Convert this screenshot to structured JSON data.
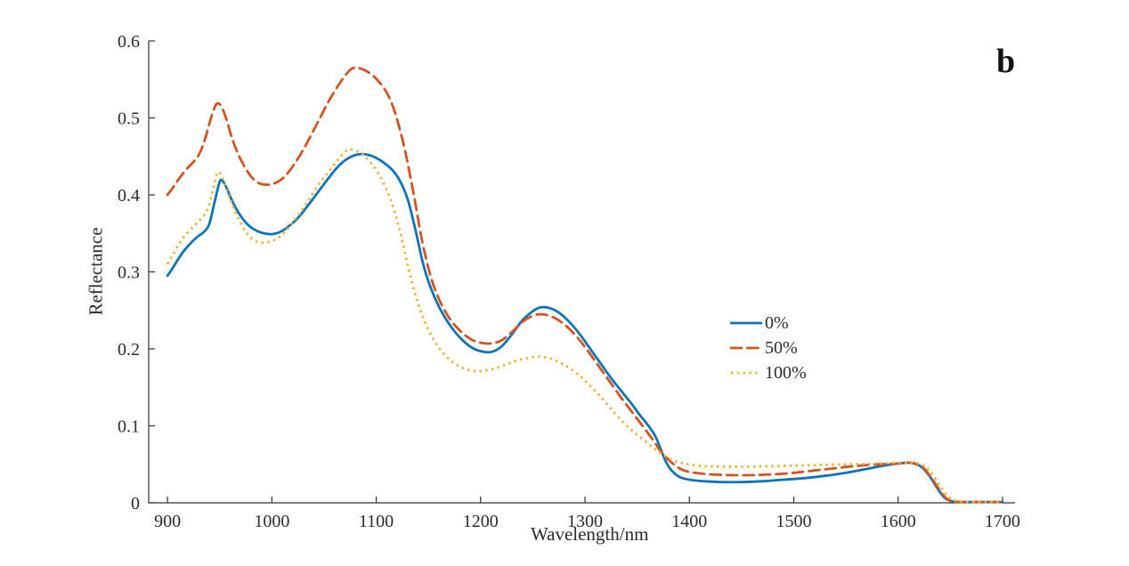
{
  "figure": {
    "panel_label": "b",
    "background_color": "#ffffff"
  },
  "chart_data": {
    "type": "line",
    "title": "",
    "xlabel": "Wavelength/nm",
    "ylabel": "Reflectance",
    "xlim": [
      882,
      1712
    ],
    "ylim": [
      0,
      0.6
    ],
    "x_ticks": [
      900,
      1000,
      1100,
      1200,
      1300,
      1400,
      1500,
      1600,
      1700
    ],
    "y_ticks": [
      0,
      0.1,
      0.2,
      0.3,
      0.4,
      0.5,
      0.6
    ],
    "y_tick_labels": [
      "0",
      "0.1",
      "0.2",
      "0.3",
      "0.4",
      "0.5",
      "0.6"
    ],
    "grid": false,
    "legend_position": "right-center",
    "axis_color": "#333333",
    "text_color": "#2b2b2b",
    "series": [
      {
        "name": "0%",
        "color": "#0e74b8",
        "style": "solid",
        "points": [
          [
            900,
            0.295
          ],
          [
            905,
            0.305
          ],
          [
            910,
            0.316
          ],
          [
            915,
            0.326
          ],
          [
            920,
            0.334
          ],
          [
            925,
            0.341
          ],
          [
            930,
            0.347
          ],
          [
            935,
            0.352
          ],
          [
            940,
            0.362
          ],
          [
            945,
            0.39
          ],
          [
            950,
            0.417
          ],
          [
            953,
            0.418
          ],
          [
            957,
            0.408
          ],
          [
            962,
            0.392
          ],
          [
            968,
            0.377
          ],
          [
            975,
            0.364
          ],
          [
            982,
            0.356
          ],
          [
            990,
            0.351
          ],
          [
            1000,
            0.349
          ],
          [
            1008,
            0.352
          ],
          [
            1015,
            0.358
          ],
          [
            1025,
            0.37
          ],
          [
            1035,
            0.387
          ],
          [
            1045,
            0.405
          ],
          [
            1055,
            0.423
          ],
          [
            1065,
            0.439
          ],
          [
            1075,
            0.449
          ],
          [
            1085,
            0.453
          ],
          [
            1095,
            0.451
          ],
          [
            1105,
            0.444
          ],
          [
            1115,
            0.433
          ],
          [
            1122,
            0.42
          ],
          [
            1130,
            0.395
          ],
          [
            1138,
            0.352
          ],
          [
            1145,
            0.31
          ],
          [
            1152,
            0.28
          ],
          [
            1160,
            0.255
          ],
          [
            1170,
            0.232
          ],
          [
            1180,
            0.215
          ],
          [
            1190,
            0.203
          ],
          [
            1200,
            0.197
          ],
          [
            1210,
            0.196
          ],
          [
            1220,
            0.203
          ],
          [
            1230,
            0.219
          ],
          [
            1240,
            0.237
          ],
          [
            1250,
            0.249
          ],
          [
            1258,
            0.254
          ],
          [
            1266,
            0.253
          ],
          [
            1275,
            0.247
          ],
          [
            1285,
            0.235
          ],
          [
            1295,
            0.219
          ],
          [
            1305,
            0.2
          ],
          [
            1315,
            0.181
          ],
          [
            1325,
            0.162
          ],
          [
            1335,
            0.145
          ],
          [
            1345,
            0.128
          ],
          [
            1352,
            0.115
          ],
          [
            1358,
            0.105
          ],
          [
            1363,
            0.096
          ],
          [
            1368,
            0.085
          ],
          [
            1373,
            0.068
          ],
          [
            1378,
            0.052
          ],
          [
            1383,
            0.042
          ],
          [
            1390,
            0.034
          ],
          [
            1400,
            0.03
          ],
          [
            1415,
            0.028
          ],
          [
            1430,
            0.027
          ],
          [
            1450,
            0.027
          ],
          [
            1470,
            0.028
          ],
          [
            1490,
            0.03
          ],
          [
            1510,
            0.032
          ],
          [
            1530,
            0.035
          ],
          [
            1550,
            0.039
          ],
          [
            1570,
            0.044
          ],
          [
            1585,
            0.048
          ],
          [
            1600,
            0.051
          ],
          [
            1612,
            0.052
          ],
          [
            1622,
            0.047
          ],
          [
            1630,
            0.035
          ],
          [
            1638,
            0.018
          ],
          [
            1645,
            0.006
          ],
          [
            1652,
            0.002
          ],
          [
            1660,
            0.001
          ],
          [
            1680,
            0.001
          ],
          [
            1700,
            0.001
          ]
        ]
      },
      {
        "name": "50%",
        "color": "#d2541f",
        "style": "dashed",
        "points": [
          [
            900,
            0.4
          ],
          [
            905,
            0.409
          ],
          [
            910,
            0.419
          ],
          [
            915,
            0.428
          ],
          [
            920,
            0.436
          ],
          [
            925,
            0.443
          ],
          [
            930,
            0.452
          ],
          [
            935,
            0.468
          ],
          [
            940,
            0.492
          ],
          [
            945,
            0.513
          ],
          [
            948,
            0.519
          ],
          [
            952,
            0.514
          ],
          [
            957,
            0.496
          ],
          [
            962,
            0.473
          ],
          [
            968,
            0.452
          ],
          [
            975,
            0.434
          ],
          [
            982,
            0.421
          ],
          [
            990,
            0.414
          ],
          [
            1000,
            0.414
          ],
          [
            1008,
            0.419
          ],
          [
            1015,
            0.428
          ],
          [
            1025,
            0.447
          ],
          [
            1035,
            0.471
          ],
          [
            1045,
            0.497
          ],
          [
            1055,
            0.523
          ],
          [
            1065,
            0.545
          ],
          [
            1072,
            0.558
          ],
          [
            1078,
            0.565
          ],
          [
            1085,
            0.564
          ],
          [
            1095,
            0.557
          ],
          [
            1105,
            0.543
          ],
          [
            1113,
            0.525
          ],
          [
            1120,
            0.498
          ],
          [
            1128,
            0.455
          ],
          [
            1136,
            0.4
          ],
          [
            1144,
            0.34
          ],
          [
            1152,
            0.295
          ],
          [
            1160,
            0.265
          ],
          [
            1170,
            0.24
          ],
          [
            1180,
            0.224
          ],
          [
            1190,
            0.213
          ],
          [
            1200,
            0.208
          ],
          [
            1210,
            0.207
          ],
          [
            1220,
            0.211
          ],
          [
            1230,
            0.222
          ],
          [
            1240,
            0.235
          ],
          [
            1250,
            0.243
          ],
          [
            1258,
            0.245
          ],
          [
            1266,
            0.243
          ],
          [
            1275,
            0.237
          ],
          [
            1285,
            0.226
          ],
          [
            1295,
            0.211
          ],
          [
            1305,
            0.193
          ],
          [
            1315,
            0.174
          ],
          [
            1325,
            0.155
          ],
          [
            1335,
            0.136
          ],
          [
            1345,
            0.118
          ],
          [
            1355,
            0.1
          ],
          [
            1365,
            0.082
          ],
          [
            1372,
            0.068
          ],
          [
            1380,
            0.056
          ],
          [
            1388,
            0.047
          ],
          [
            1395,
            0.042
          ],
          [
            1405,
            0.039
          ],
          [
            1420,
            0.037
          ],
          [
            1440,
            0.036
          ],
          [
            1460,
            0.036
          ],
          [
            1480,
            0.037
          ],
          [
            1500,
            0.039
          ],
          [
            1520,
            0.042
          ],
          [
            1540,
            0.045
          ],
          [
            1560,
            0.048
          ],
          [
            1580,
            0.05
          ],
          [
            1600,
            0.051
          ],
          [
            1612,
            0.052
          ],
          [
            1622,
            0.048
          ],
          [
            1630,
            0.036
          ],
          [
            1638,
            0.02
          ],
          [
            1645,
            0.007
          ],
          [
            1652,
            0.002
          ],
          [
            1660,
            0.001
          ],
          [
            1680,
            0.001
          ],
          [
            1700,
            0.001
          ]
        ]
      },
      {
        "name": "100%",
        "color": "#e9b231",
        "style": "dotted",
        "points": [
          [
            900,
            0.31
          ],
          [
            905,
            0.322
          ],
          [
            910,
            0.334
          ],
          [
            915,
            0.344
          ],
          [
            920,
            0.352
          ],
          [
            925,
            0.359
          ],
          [
            930,
            0.366
          ],
          [
            935,
            0.373
          ],
          [
            940,
            0.388
          ],
          [
            945,
            0.415
          ],
          [
            948,
            0.429
          ],
          [
            951,
            0.427
          ],
          [
            955,
            0.413
          ],
          [
            960,
            0.395
          ],
          [
            967,
            0.372
          ],
          [
            975,
            0.352
          ],
          [
            982,
            0.342
          ],
          [
            990,
            0.338
          ],
          [
            1000,
            0.34
          ],
          [
            1008,
            0.346
          ],
          [
            1015,
            0.356
          ],
          [
            1025,
            0.373
          ],
          [
            1035,
            0.393
          ],
          [
            1045,
            0.414
          ],
          [
            1055,
            0.431
          ],
          [
            1063,
            0.445
          ],
          [
            1070,
            0.456
          ],
          [
            1076,
            0.459
          ],
          [
            1083,
            0.456
          ],
          [
            1090,
            0.449
          ],
          [
            1098,
            0.436
          ],
          [
            1106,
            0.418
          ],
          [
            1114,
            0.393
          ],
          [
            1122,
            0.357
          ],
          [
            1130,
            0.31
          ],
          [
            1138,
            0.268
          ],
          [
            1146,
            0.237
          ],
          [
            1155,
            0.212
          ],
          [
            1165,
            0.193
          ],
          [
            1175,
            0.181
          ],
          [
            1185,
            0.174
          ],
          [
            1195,
            0.171
          ],
          [
            1205,
            0.172
          ],
          [
            1215,
            0.175
          ],
          [
            1225,
            0.18
          ],
          [
            1235,
            0.185
          ],
          [
            1245,
            0.188
          ],
          [
            1255,
            0.19
          ],
          [
            1265,
            0.188
          ],
          [
            1275,
            0.183
          ],
          [
            1285,
            0.175
          ],
          [
            1295,
            0.165
          ],
          [
            1305,
            0.152
          ],
          [
            1315,
            0.138
          ],
          [
            1325,
            0.122
          ],
          [
            1335,
            0.107
          ],
          [
            1345,
            0.094
          ],
          [
            1355,
            0.083
          ],
          [
            1365,
            0.072
          ],
          [
            1375,
            0.062
          ],
          [
            1385,
            0.055
          ],
          [
            1395,
            0.051
          ],
          [
            1410,
            0.048
          ],
          [
            1430,
            0.047
          ],
          [
            1460,
            0.047
          ],
          [
            1490,
            0.048
          ],
          [
            1520,
            0.049
          ],
          [
            1550,
            0.05
          ],
          [
            1580,
            0.051
          ],
          [
            1600,
            0.052
          ],
          [
            1615,
            0.052
          ],
          [
            1625,
            0.048
          ],
          [
            1633,
            0.037
          ],
          [
            1641,
            0.02
          ],
          [
            1648,
            0.008
          ],
          [
            1655,
            0.003
          ],
          [
            1665,
            0.001
          ],
          [
            1685,
            0.001
          ],
          [
            1700,
            0.001
          ]
        ]
      }
    ]
  }
}
